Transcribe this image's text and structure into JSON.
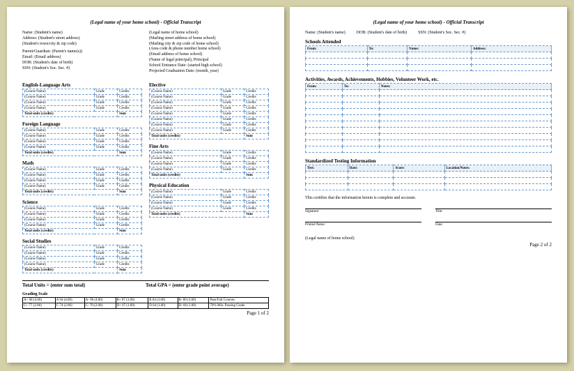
{
  "title": "(Legal name of your home school) - Official Transcript",
  "p1": {
    "left": [
      "Name: (Student's name)",
      "Address: (Student's street address)",
      "(Student's town/city & zip code)",
      "",
      "Parent/Guardian: (Parent's name(s))",
      "Email: (Email address)",
      "DOB: (Student's date of birth)",
      "SSN: (Student's Soc. Sec. #)"
    ],
    "right": [
      "(Legal name of home school)",
      "(Mailing street address of home school)",
      "(Mailing city & zip code of home school)",
      "(Area code & phone number home school)",
      "(Email address of home school)",
      "(Name of legal principal), Principal",
      "School Entrance Date: (started high school)",
      "Projected Graduation Date: (month, year)"
    ],
    "subjects_left": [
      "English-Language Arts",
      "Foreign Language",
      "Math",
      "Science",
      "Social Studies"
    ],
    "subjects_right": [
      "Elective",
      "Fine Arts",
      "Physical Education"
    ],
    "course": "(Course Name)",
    "grade": "Grade",
    "credits": "Credits",
    "total_units": "Total units (credits)",
    "sum": "Sum",
    "totals_l": "Total Units = (enter sum total)",
    "totals_r": "Total GPA = (enter grade point average)",
    "gs_hdr": "Grading Scale",
    "gs": [
      [
        "A+ 98 (4.00)",
        "A 94 (4.00)",
        "A- 90 (4.00)",
        "B+ 87 (3.00)",
        "B 84 (3.00)",
        "B- 80 (3.00)",
        "Pass/Fail Courses"
      ],
      [
        "C+ 77 (2.00)",
        "C 74 (2.00)",
        "C- 70 (2.00)",
        "D+ 67 (1.00)",
        "D 64 (1.00)",
        "D- 60 (1.00)",
        "70% Min. Passing Grade"
      ]
    ],
    "pgnum": "Page 1 of 2"
  },
  "p2": {
    "info": {
      "name": "Name: (Student's name)",
      "dob": "DOB: (Student's date of birth)",
      "ssn": "SSN: (Student's Soc. Sec. #)"
    },
    "s1": {
      "hdr": "Schools Attended",
      "cols": [
        "From:",
        "To:",
        "Name:",
        "Address:"
      ]
    },
    "s2": {
      "hdr": "Activities, Awards, Achievements, Hobbies, Volunteer Work, etc.",
      "cols": [
        "From:",
        "To:",
        "Notes:"
      ]
    },
    "s3": {
      "hdr": "Standardized Testing Information",
      "cols": [
        "Test:",
        "Date:",
        "Score:",
        "Location/Notes:"
      ]
    },
    "cert": "This certifies that the information herein is complete and accurate.",
    "sig": {
      "s": "Signature:",
      "t": "Title:",
      "p": "Printed Name:",
      "d": "Date:"
    },
    "school": "(Legal name of home school)",
    "pgnum": "Page 2 of 2"
  }
}
